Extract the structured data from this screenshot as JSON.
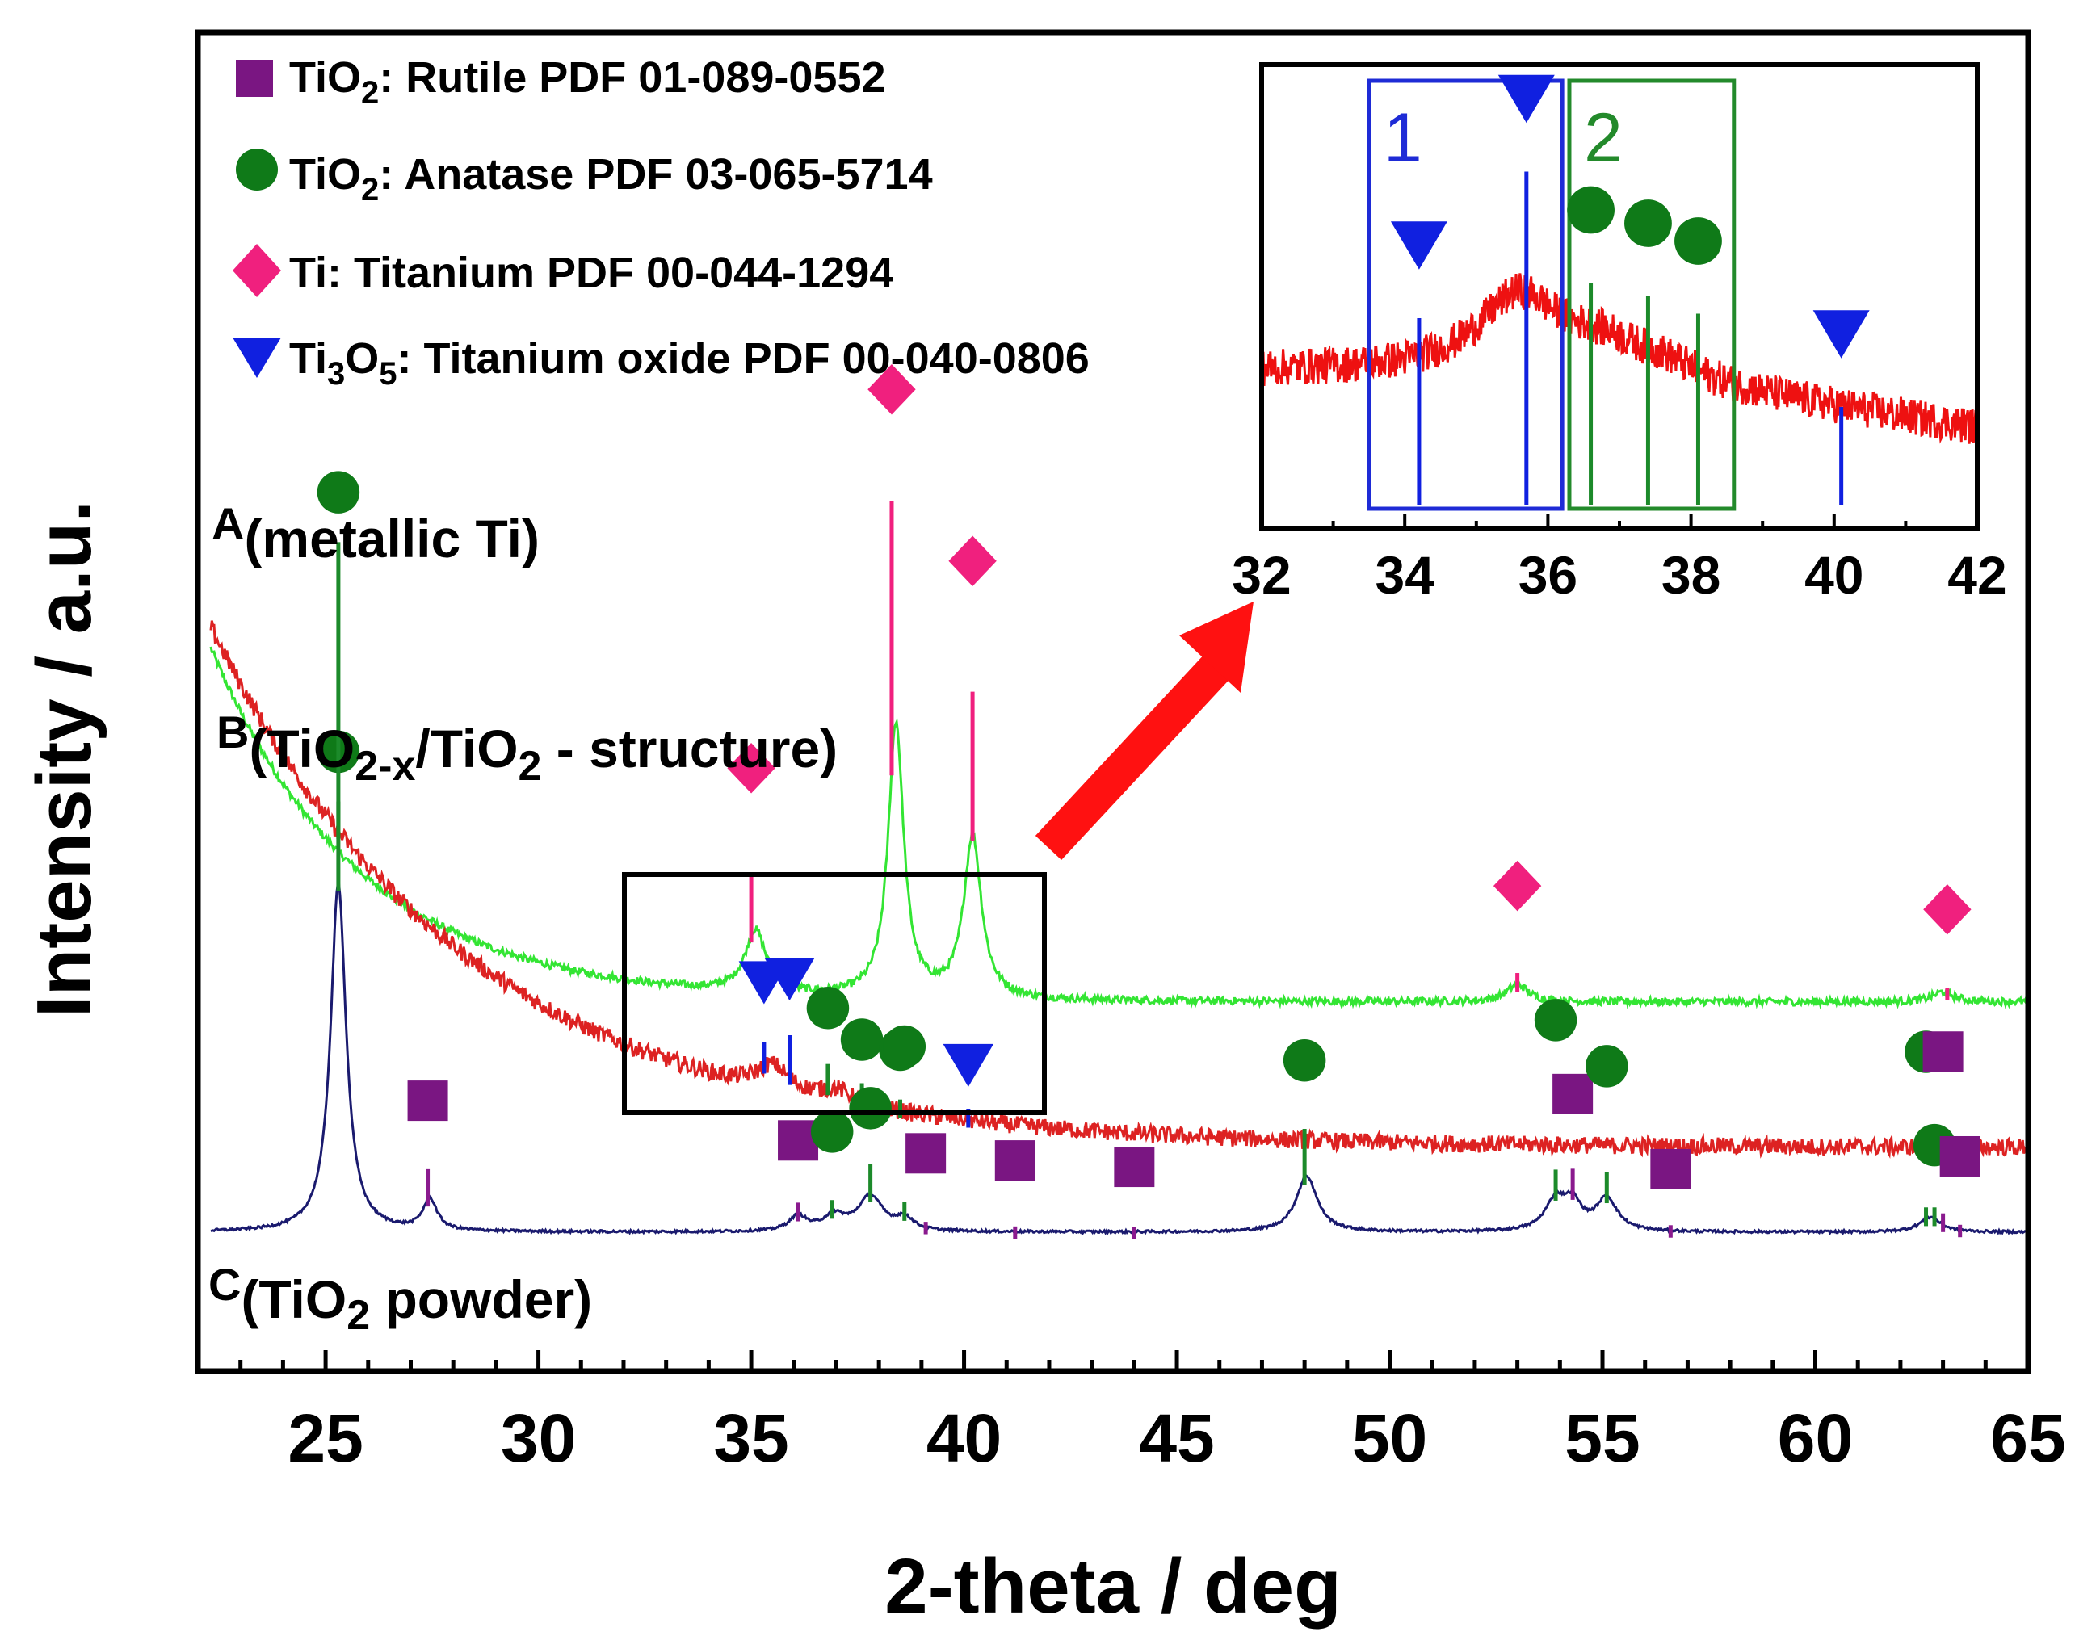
{
  "chart_data": {
    "type": "line",
    "xlabel": "2-theta / deg",
    "ylabel": "Intensity / a.u.",
    "xlim": [
      22,
      65
    ],
    "ylim": [
      0,
      100
    ],
    "x_ticks": [
      25,
      30,
      35,
      40,
      45,
      50,
      55,
      60,
      65
    ],
    "grid": false,
    "legend_position": "top-left",
    "legend": [
      {
        "marker": "square",
        "color": "#7a1682",
        "label_main": "TiO",
        "label_sub": "2",
        "label_rest": ": Rutile PDF 01-089-0552"
      },
      {
        "marker": "circle",
        "color": "#0f7a18",
        "label_main": "TiO",
        "label_sub": "2",
        "label_rest": ": Anatase PDF 03-065-5714"
      },
      {
        "marker": "diamond",
        "color": "#f0207e",
        "label_main": "Ti: Titanium PDF 00-044-1294",
        "label_sub": "",
        "label_rest": ""
      },
      {
        "marker": "triangle-down",
        "color": "#1020e0",
        "label_main": "Ti",
        "label_sub": "3",
        "label_mid": "O",
        "label_sub2": "5",
        "label_rest": ": Titanium oxide PDF 00-040-0806"
      }
    ],
    "series": [
      {
        "name": "A",
        "label_letter": "A",
        "label_text": "(metallic Ti)",
        "color": "#33e533",
        "baseline": 18.5,
        "background": {
          "start": 31,
          "decay": 3.5
        },
        "noise": 0.3,
        "peaks": [
          {
            "x": 35.1,
            "h": 5,
            "w": 0.3
          },
          {
            "x": 38.4,
            "h": 22,
            "w": 0.22
          },
          {
            "x": 40.2,
            "h": 13,
            "w": 0.25
          },
          {
            "x": 53.0,
            "h": 1.4,
            "w": 0.3
          },
          {
            "x": 63.0,
            "h": 0.8,
            "w": 0.3
          }
        ]
      },
      {
        "name": "B",
        "label_letter": "B",
        "label_text_1": "(TiO",
        "label_sub_1": "2-x",
        "label_text_2": "/TiO",
        "label_sub_2": "2",
        "label_text_3": " - structure)",
        "color": "#dd2222",
        "baseline": 6.8,
        "background": {
          "start": 44,
          "decay": 6
        },
        "noise": 0.7,
        "peaks": [
          {
            "x": 35.5,
            "h": 2.0,
            "w": 0.45
          },
          {
            "x": 37.0,
            "h": 1.0,
            "w": 0.5
          }
        ]
      },
      {
        "name": "C",
        "label_letter": "C",
        "label_text_1": "(TiO",
        "label_sub_1": "2",
        "label_text_2": " powder)",
        "color": "#1a1a6e",
        "baseline": 0,
        "background": {
          "start": 0,
          "decay": 1
        },
        "noise": 0.1,
        "peaks": [
          {
            "x": 25.3,
            "h": 28,
            "w": 0.22
          },
          {
            "x": 27.45,
            "h": 2.5,
            "w": 0.2
          },
          {
            "x": 36.1,
            "h": 1.2,
            "w": 0.25
          },
          {
            "x": 36.95,
            "h": 1.2,
            "w": 0.3
          },
          {
            "x": 37.8,
            "h": 2.8,
            "w": 0.35
          },
          {
            "x": 38.6,
            "h": 1.0,
            "w": 0.25
          },
          {
            "x": 48.05,
            "h": 4.5,
            "w": 0.3
          },
          {
            "x": 53.9,
            "h": 2.4,
            "w": 0.3
          },
          {
            "x": 54.3,
            "h": 2.0,
            "w": 0.25
          },
          {
            "x": 55.1,
            "h": 2.6,
            "w": 0.3
          },
          {
            "x": 62.7,
            "h": 1.2,
            "w": 0.3
          }
        ]
      }
    ],
    "reference_marks": [
      {
        "phase": "diamond",
        "trace": "A",
        "x": 35.0,
        "stick": 5.5,
        "mark_offset": 14
      },
      {
        "phase": "diamond",
        "trace": "A",
        "x": 38.3,
        "stick": 22,
        "mark_offset": 31
      },
      {
        "phase": "diamond",
        "trace": "A",
        "x": 40.2,
        "stick": 12,
        "mark_offset": 22.5
      },
      {
        "phase": "diamond",
        "trace": "A",
        "x": 53.0,
        "stick": 1.5,
        "mark_offset": 8.5
      },
      {
        "phase": "diamond",
        "trace": "A",
        "x": 63.1,
        "stick": 1.0,
        "mark_offset": 7.3
      },
      {
        "phase": "circle",
        "trace": "B",
        "x": 25.3,
        "stick": 3,
        "mark_offset": 7
      },
      {
        "phase": "triangle-down",
        "trace": "B",
        "x": 35.3,
        "stick": 2.5,
        "mark_offset": 7.3
      },
      {
        "phase": "triangle-down",
        "trace": "B",
        "x": 35.9,
        "stick": 4,
        "mark_offset": 8.5
      },
      {
        "phase": "circle",
        "trace": "B",
        "x": 36.8,
        "stick": 2.5,
        "mark_offset": 7
      },
      {
        "phase": "circle",
        "trace": "B",
        "x": 37.6,
        "stick": 2.0,
        "mark_offset": 5.5
      },
      {
        "phase": "circle",
        "trace": "B",
        "x": 38.5,
        "stick": 1.5,
        "mark_offset": 5.5
      },
      {
        "phase": "triangle-down",
        "trace": "B",
        "x": 40.1,
        "stick": 1.5,
        "mark_offset": 5.0
      },
      {
        "phase": "circle",
        "trace": "C",
        "x": 25.3,
        "stick": 28,
        "mark_offset": 32
      },
      {
        "phase": "square",
        "trace": "C",
        "x": 27.4,
        "stick": 3,
        "mark_offset": 8.5
      },
      {
        "phase": "square",
        "trace": "C",
        "x": 36.1,
        "stick": 1.5,
        "mark_offset": 6.5
      },
      {
        "phase": "circle",
        "trace": "C",
        "x": 36.9,
        "stick": 1.5,
        "mark_offset": 7
      },
      {
        "phase": "circle",
        "trace": "C",
        "x": 37.8,
        "stick": 3.0,
        "mark_offset": 7.5
      },
      {
        "phase": "circle",
        "trace": "C",
        "x": 38.6,
        "stick": 1.5,
        "mark_offset": 14
      },
      {
        "phase": "square",
        "trace": "C",
        "x": 39.1,
        "stick": 1.0,
        "mark_offset": 6.5
      },
      {
        "phase": "square",
        "trace": "C",
        "x": 41.2,
        "stick": 1.0,
        "mark_offset": 6.3
      },
      {
        "phase": "square",
        "trace": "C",
        "x": 44.0,
        "stick": 1.0,
        "mark_offset": 5.8
      },
      {
        "phase": "circle",
        "trace": "C",
        "x": 48.0,
        "stick": 4.5,
        "mark_offset": 10
      },
      {
        "phase": "circle",
        "trace": "C",
        "x": 53.9,
        "stick": 2.5,
        "mark_offset": 14.5
      },
      {
        "phase": "square",
        "trace": "C",
        "x": 54.3,
        "stick": 2.5,
        "mark_offset": 8.5
      },
      {
        "phase": "circle",
        "trace": "C",
        "x": 55.1,
        "stick": 2.5,
        "mark_offset": 11
      },
      {
        "phase": "square",
        "trace": "C",
        "x": 56.6,
        "stick": 1.0,
        "mark_offset": 5.5
      },
      {
        "phase": "circle",
        "trace": "C",
        "x": 62.6,
        "stick": 1.5,
        "mark_offset": 14
      },
      {
        "phase": "square",
        "trace": "C",
        "x": 63.0,
        "stick": 1.5,
        "mark_offset": 14.5
      },
      {
        "phase": "circle",
        "trace": "C",
        "x": 62.8,
        "stick": 1.5,
        "mark_offset": 6.5
      },
      {
        "phase": "square",
        "trace": "C",
        "x": 63.4,
        "stick": 1.0,
        "mark_offset": 6.5
      }
    ],
    "inset": {
      "xlim": [
        32,
        42
      ],
      "x_ticks": [
        32,
        34,
        36,
        38,
        40,
        42
      ],
      "source_range": [
        34,
        41
      ],
      "regions": [
        {
          "label": "1",
          "x_start": 33.5,
          "x_end": 36.2,
          "color": "#1e2bd6"
        },
        {
          "label": "2",
          "x_start": 36.3,
          "x_end": 38.6,
          "color": "#238a2b"
        }
      ],
      "signal": {
        "base": 45,
        "noise": 10,
        "peaks": [
          {
            "x": 35.6,
            "h": 40,
            "w": 0.7
          },
          {
            "x": 36.8,
            "h": 12,
            "w": 0.6
          },
          {
            "x": 37.6,
            "h": 8,
            "w": 0.6
          }
        ],
        "slope_after": 36.4,
        "slope_rate": 5.5
      },
      "marks": [
        {
          "phase": "triangle-down",
          "x": 34.2,
          "stick": 42
        },
        {
          "phase": "triangle-down",
          "x": 35.7,
          "stick": 75
        },
        {
          "phase": "circle",
          "x": 36.6,
          "stick": 50
        },
        {
          "phase": "circle",
          "x": 37.4,
          "stick": 47
        },
        {
          "phase": "circle",
          "x": 38.1,
          "stick": 43
        },
        {
          "phase": "triangle-down",
          "x": 40.1,
          "stick": 22
        }
      ]
    }
  }
}
